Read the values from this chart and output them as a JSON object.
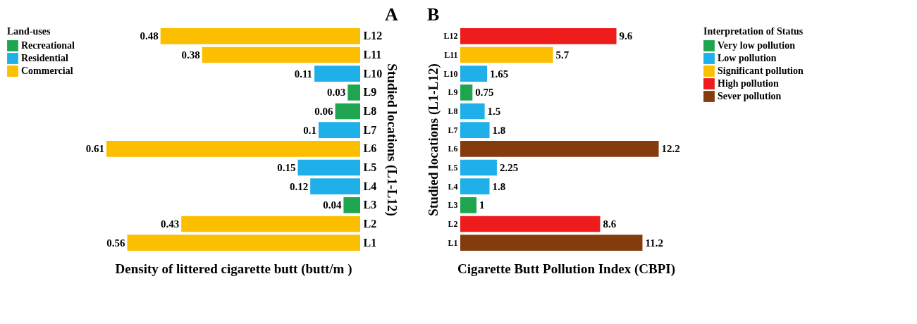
{
  "chart_data": [
    {
      "type": "bar",
      "title": "A",
      "orientation": "horizontal",
      "xlim": [
        0.61,
        0
      ],
      "xlabel": "Density of littered cigarette butt (butt/m )",
      "ylabel": "Studied locations (L1-L12)",
      "legend_title": "Land-uses",
      "legend": "left",
      "data_labels": true,
      "tick_labels": "y",
      "categories": [
        "L12",
        "L11",
        "L10",
        "L9",
        "L8",
        "L7",
        "L6",
        "L5",
        "L4",
        "L3",
        "L2",
        "L1"
      ],
      "series": [
        {
          "name": "Recreational",
          "color": "#1fa550",
          "values": [
            null,
            null,
            null,
            0.03,
            0.06,
            null,
            null,
            null,
            null,
            0.04,
            null,
            null
          ]
        },
        {
          "name": "Residential",
          "color": "#1fb0ea",
          "values": [
            null,
            null,
            0.11,
            null,
            null,
            0.1,
            null,
            0.15,
            0.12,
            null,
            null,
            null
          ]
        },
        {
          "name": "Commercial",
          "color": "#fbbf00",
          "values": [
            0.48,
            0.38,
            null,
            null,
            null,
            null,
            0.61,
            null,
            null,
            null,
            0.43,
            0.56
          ]
        }
      ]
    },
    {
      "type": "bar",
      "title": "B",
      "orientation": "horizontal",
      "xlabel": "Cigarette Butt Pollution Index (CBPI)",
      "ylabel": "Studied locations (L1-L12)",
      "legend_title": "Interpretation of Status",
      "legend": "right",
      "data_labels": true,
      "tick_labels": "y",
      "categories": [
        "L12",
        "L11",
        "L10",
        "L9",
        "L8",
        "L7",
        "L6",
        "L5",
        "L4",
        "L3",
        "L2",
        "L1"
      ],
      "series": [
        {
          "name": "Very low pollution",
          "color": "#1fa550",
          "values": [
            null,
            null,
            null,
            0.75,
            null,
            null,
            null,
            null,
            null,
            1,
            null,
            null
          ]
        },
        {
          "name": "Low pollution",
          "color": "#1fb0ea",
          "values": [
            null,
            null,
            1.65,
            null,
            1.5,
            1.8,
            null,
            2.25,
            1.8,
            null,
            null,
            null
          ]
        },
        {
          "name": "Significant pollution",
          "color": "#fbbf00",
          "values": [
            null,
            5.7,
            null,
            null,
            null,
            null,
            null,
            null,
            null,
            null,
            null,
            null
          ]
        },
        {
          "name": "High pollution",
          "color": "#ee1c1c",
          "values": [
            9.6,
            null,
            null,
            null,
            null,
            null,
            null,
            null,
            null,
            null,
            8.6,
            null
          ]
        },
        {
          "name": "Sever pollution",
          "color": "#843c0c",
          "values": [
            null,
            null,
            null,
            null,
            null,
            null,
            12.2,
            null,
            null,
            null,
            null,
            11.2
          ]
        }
      ]
    }
  ]
}
